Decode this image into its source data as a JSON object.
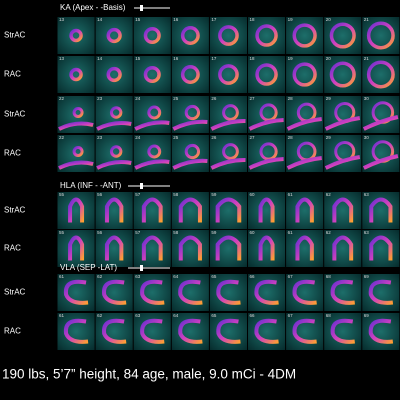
{
  "sections": [
    {
      "title": "KA (Apex - -Basis)",
      "rows": [
        {
          "label": "StrAC",
          "frames": [
            "13",
            "14",
            "15",
            "16",
            "17",
            "18",
            "19",
            "20",
            "21"
          ]
        },
        {
          "label": "RAC",
          "frames": [
            "13",
            "14",
            "15",
            "16",
            "17",
            "18",
            "19",
            "20",
            "21"
          ]
        },
        {
          "label": "StrAC",
          "frames": [
            "22",
            "23",
            "24",
            "25",
            "26",
            "27",
            "28",
            "29",
            "30"
          ]
        },
        {
          "label": "RAC",
          "frames": [
            "22",
            "23",
            "24",
            "25",
            "26",
            "27",
            "28",
            "29",
            "30"
          ]
        }
      ]
    },
    {
      "title": "HLA (INF - -ANT)",
      "rows": [
        {
          "label": "StrAC",
          "frames": [
            "55",
            "56",
            "57",
            "58",
            "59",
            "60",
            "61",
            "62",
            "63"
          ]
        },
        {
          "label": "RAC",
          "frames": [
            "55",
            "56",
            "57",
            "58",
            "59",
            "60",
            "61",
            "62",
            "63"
          ]
        }
      ]
    },
    {
      "title": "VLA (SEP -LAT)",
      "rows": [
        {
          "label": "StrAC",
          "frames": [
            "61",
            "62",
            "63",
            "64",
            "65",
            "66",
            "67",
            "68",
            "69"
          ]
        },
        {
          "label": "RAC",
          "frames": [
            "61",
            "62",
            "63",
            "64",
            "65",
            "66",
            "67",
            "68",
            "69"
          ]
        }
      ]
    }
  ],
  "footer": "190 lbs, 5’7” height, 84 age, male, 9.0 mCi - 4DM"
}
